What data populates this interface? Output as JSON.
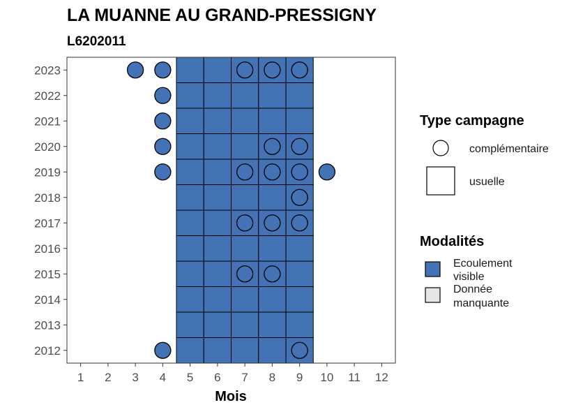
{
  "chart_data": {
    "type": "heatmap",
    "title": "LA MUANNE AU GRAND-PRESSIGNY",
    "subtitle": "L6202011",
    "xlabel": "Mois",
    "ylabel": "",
    "x_ticks": [
      "1",
      "2",
      "3",
      "4",
      "5",
      "6",
      "7",
      "8",
      "9",
      "10",
      "11",
      "12"
    ],
    "y_ticks": [
      "2012",
      "2013",
      "2014",
      "2015",
      "2016",
      "2017",
      "2018",
      "2019",
      "2020",
      "2021",
      "2022",
      "2023"
    ],
    "years": [
      2012,
      2013,
      2014,
      2015,
      2016,
      2017,
      2018,
      2019,
      2020,
      2021,
      2022,
      2023
    ],
    "grid": false,
    "colors": {
      "ecoulement_visible": "#4372b5",
      "donnee_manquante": "#e5e5e5"
    },
    "usuelle_months": [
      5,
      6,
      7,
      8,
      9
    ],
    "observations": [
      {
        "year": 2023,
        "month": 3,
        "campaign": "complémentaire",
        "modalite": "Ecoulement visible"
      },
      {
        "year": 2023,
        "month": 4,
        "campaign": "complémentaire",
        "modalite": "Ecoulement visible"
      },
      {
        "year": 2023,
        "month": 7,
        "campaign": "complémentaire",
        "modalite": "Ecoulement visible"
      },
      {
        "year": 2023,
        "month": 8,
        "campaign": "complémentaire",
        "modalite": "Ecoulement visible"
      },
      {
        "year": 2023,
        "month": 9,
        "campaign": "complémentaire",
        "modalite": "Ecoulement visible"
      },
      {
        "year": 2022,
        "month": 4,
        "campaign": "complémentaire",
        "modalite": "Ecoulement visible"
      },
      {
        "year": 2021,
        "month": 4,
        "campaign": "complémentaire",
        "modalite": "Ecoulement visible"
      },
      {
        "year": 2020,
        "month": 4,
        "campaign": "complémentaire",
        "modalite": "Ecoulement visible"
      },
      {
        "year": 2020,
        "month": 8,
        "campaign": "complémentaire",
        "modalite": "Ecoulement visible"
      },
      {
        "year": 2020,
        "month": 9,
        "campaign": "complémentaire",
        "modalite": "Ecoulement visible"
      },
      {
        "year": 2019,
        "month": 4,
        "campaign": "complémentaire",
        "modalite": "Ecoulement visible"
      },
      {
        "year": 2019,
        "month": 7,
        "campaign": "complémentaire",
        "modalite": "Ecoulement visible"
      },
      {
        "year": 2019,
        "month": 8,
        "campaign": "complémentaire",
        "modalite": "Ecoulement visible"
      },
      {
        "year": 2019,
        "month": 9,
        "campaign": "complémentaire",
        "modalite": "Ecoulement visible"
      },
      {
        "year": 2019,
        "month": 10,
        "campaign": "complémentaire",
        "modalite": "Ecoulement visible"
      },
      {
        "year": 2018,
        "month": 9,
        "campaign": "complémentaire",
        "modalite": "Ecoulement visible"
      },
      {
        "year": 2017,
        "month": 7,
        "campaign": "complémentaire",
        "modalite": "Ecoulement visible"
      },
      {
        "year": 2017,
        "month": 8,
        "campaign": "complémentaire",
        "modalite": "Ecoulement visible"
      },
      {
        "year": 2017,
        "month": 9,
        "campaign": "complémentaire",
        "modalite": "Ecoulement visible"
      },
      {
        "year": 2015,
        "month": 7,
        "campaign": "complémentaire",
        "modalite": "Ecoulement visible"
      },
      {
        "year": 2015,
        "month": 8,
        "campaign": "complémentaire",
        "modalite": "Ecoulement visible"
      },
      {
        "year": 2012,
        "month": 4,
        "campaign": "complémentaire",
        "modalite": "Ecoulement visible"
      },
      {
        "year": 2012,
        "month": 9,
        "campaign": "complémentaire",
        "modalite": "Ecoulement visible"
      }
    ],
    "legend": {
      "placement": "right",
      "type_title": "Type campagne",
      "type_items": [
        {
          "label": "complémentaire",
          "shape": "circle"
        },
        {
          "label": "usuelle",
          "shape": "square"
        }
      ],
      "modalite_title": "Modalités",
      "modalite_items": [
        {
          "label_line1": "Ecoulement",
          "label_line2": "visible",
          "color": "#4372b5"
        },
        {
          "label_line1": "Donnée",
          "label_line2": "manquante",
          "color": "#e5e5e5"
        }
      ]
    }
  }
}
